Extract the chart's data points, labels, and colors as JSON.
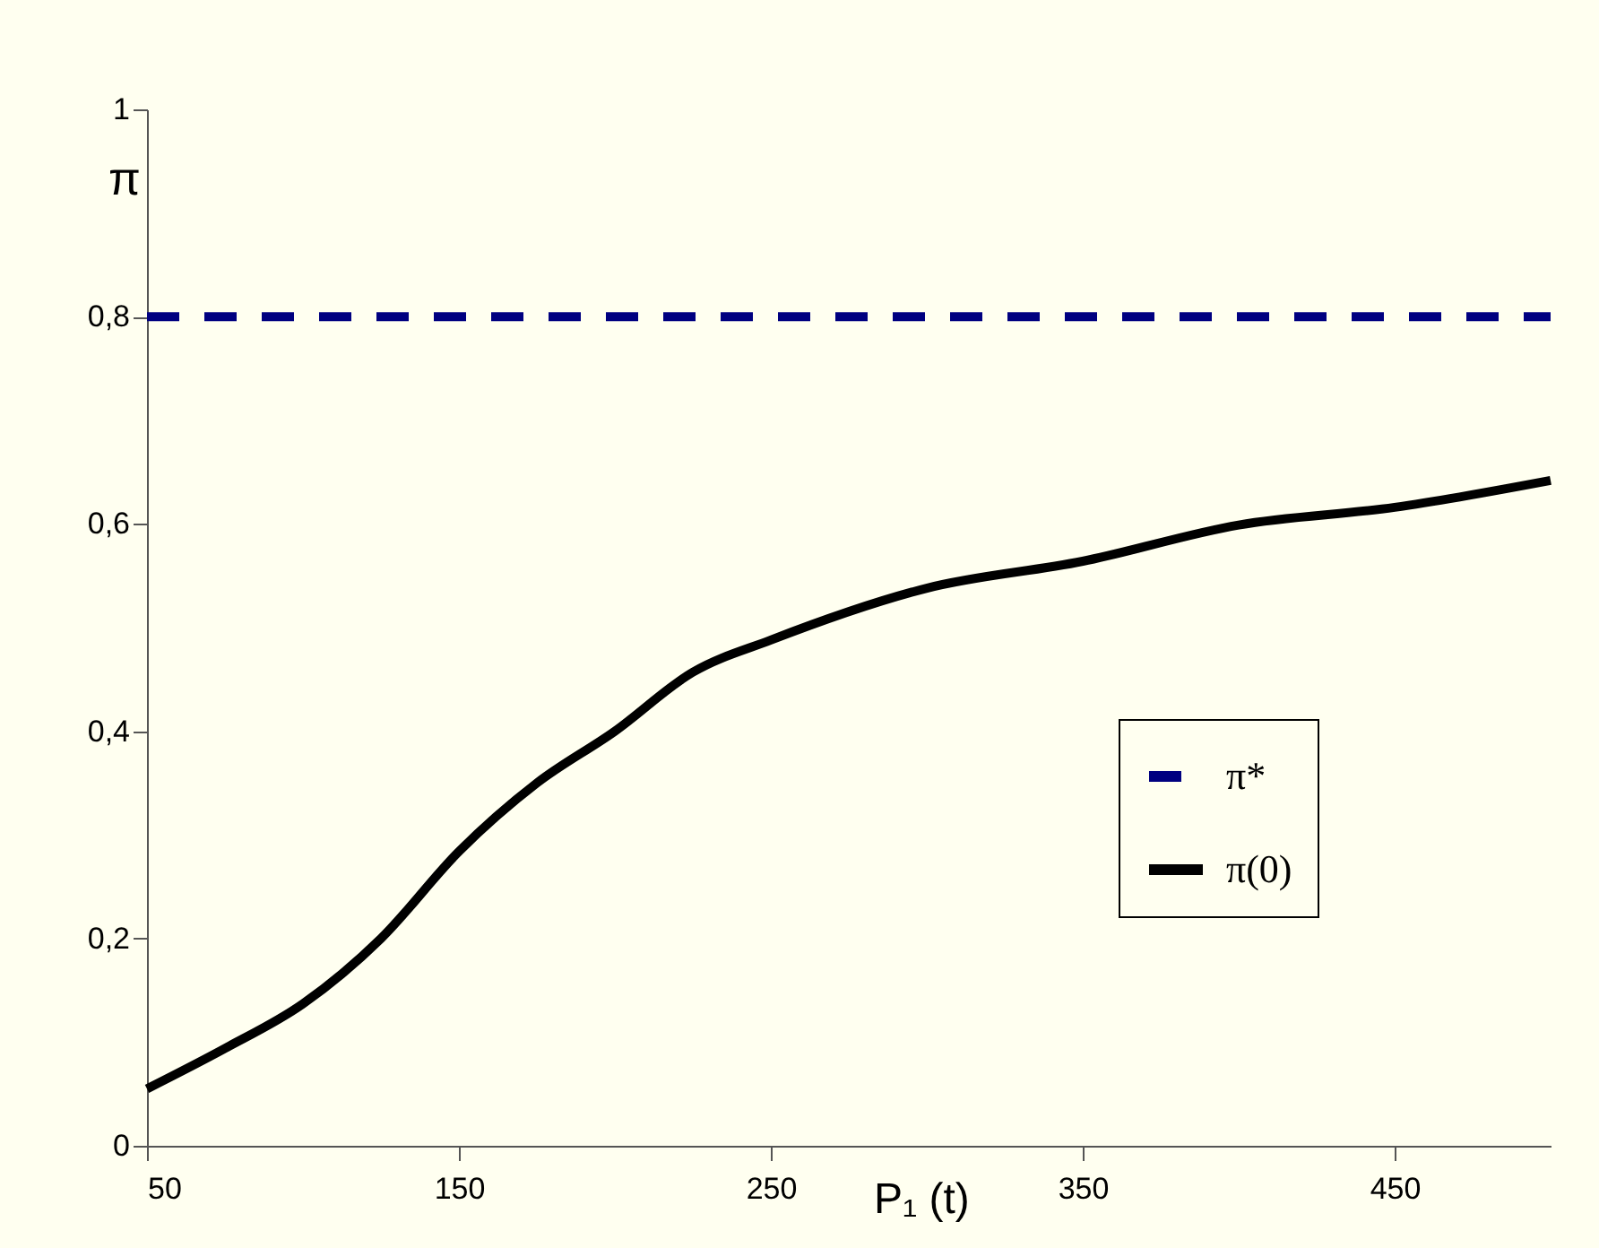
{
  "chart_data": {
    "type": "line",
    "xlabel": "P₁ (t)",
    "ylabel": "π",
    "x": [
      50,
      75,
      100,
      125,
      150,
      175,
      200,
      225,
      250,
      300,
      350,
      400,
      450,
      500
    ],
    "series": [
      {
        "name": "π*",
        "color": "#000080",
        "line_style": "dashed",
        "values": [
          0.8,
          0.8,
          0.8,
          0.8,
          0.8,
          0.8,
          0.8,
          0.8,
          0.8,
          0.8,
          0.8,
          0.8,
          0.8,
          0.8
        ]
      },
      {
        "name": "π(0)",
        "color": "#000000",
        "line_style": "solid",
        "values": [
          0.055,
          0.094,
          0.137,
          0.2,
          0.284,
          0.35,
          0.4,
          0.457,
          0.488,
          0.538,
          0.564,
          0.599,
          0.616,
          0.642
        ]
      }
    ],
    "xlim": [
      50,
      500
    ],
    "xticks": [
      50,
      150,
      250,
      350,
      450
    ],
    "ylim": [
      0,
      1
    ],
    "yticks": [
      0,
      {
        "value": 0.2,
        "label": "0,2"
      },
      {
        "value": 0.4,
        "label": "0,4"
      },
      {
        "value": 0.6,
        "label": "0,6"
      },
      {
        "value": 0.8,
        "label": "0,8"
      },
      1
    ],
    "grid": false,
    "legend": "bottom right",
    "marker": "none"
  }
}
